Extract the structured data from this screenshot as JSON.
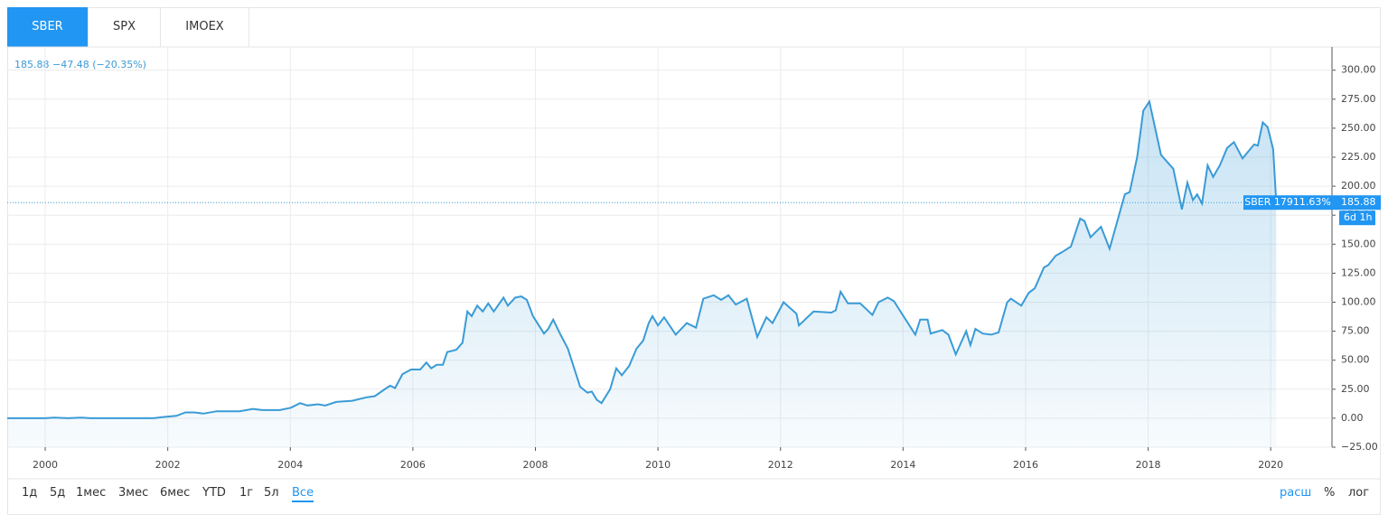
{
  "ui": {
    "tabs": [
      "SBER",
      "SPX",
      "IMOEX"
    ],
    "ranges": [
      "1д",
      "5д",
      "1мес",
      "3мес",
      "6мес",
      "YTD",
      "1г",
      "5л",
      "Все"
    ],
    "options": [
      "расш",
      "%",
      "лог"
    ]
  },
  "chart_data": {
    "type": "area",
    "header": "185.88 −47.48 (−20.35%)",
    "series_label": "SBER 17911.63%",
    "last_price": 185.88,
    "countdown": "6d 1h",
    "x": [
      1999.38,
      2000,
      2000.15,
      2000.37,
      2000.59,
      2000.74,
      2001.77,
      2001.92,
      2002.14,
      2002.29,
      2002.43,
      2002.58,
      2002.8,
      2003.17,
      2003.39,
      2003.54,
      2003.83,
      2004.01,
      2004.16,
      2004.28,
      2004.45,
      2004.57,
      2004.75,
      2005.01,
      2005.24,
      2005.38,
      2005.57,
      2005.63,
      2005.71,
      2005.83,
      2005.97,
      2006.12,
      2006.22,
      2006.3,
      2006.39,
      2006.49,
      2006.56,
      2006.71,
      2006.81,
      2006.89,
      2006.96,
      2007.05,
      2007.14,
      2007.23,
      2007.32,
      2007.48,
      2007.55,
      2007.67,
      2007.77,
      2007.86,
      2007.96,
      2008.14,
      2008.21,
      2008.29,
      2008.41,
      2008.53,
      2008.73,
      2008.85,
      2008.92,
      2009.0,
      2009.08,
      2009.22,
      2009.32,
      2009.41,
      2009.53,
      2009.65,
      2009.76,
      2009.85,
      2009.91,
      2010.0,
      2010.1,
      2010.29,
      2010.47,
      2010.62,
      2010.74,
      2010.91,
      2011.03,
      2011.15,
      2011.27,
      2011.45,
      2011.62,
      2011.77,
      2011.87,
      2012.05,
      2012.26,
      2012.3,
      2012.54,
      2012.83,
      2012.9,
      2012.98,
      2013.1,
      2013.3,
      2013.4,
      2013.5,
      2013.6,
      2013.75,
      2013.85,
      2013.97,
      2014.2,
      2014.28,
      2014.4,
      2014.45,
      2014.64,
      2014.74,
      2014.86,
      2015.03,
      2015.1,
      2015.18,
      2015.3,
      2015.44,
      2015.56,
      2015.7,
      2015.76,
      2015.93,
      2016.05,
      2016.15,
      2016.3,
      2016.37,
      2016.49,
      2016.59,
      2016.74,
      2016.89,
      2016.96,
      2017.06,
      2017.23,
      2017.37,
      2017.55,
      2017.62,
      2017.7,
      2017.82,
      2017.92,
      2018.02,
      2018.21,
      2018.41,
      2018.55,
      2018.64,
      2018.73,
      2018.8,
      2018.88,
      2018.97,
      2019.06,
      2019.17,
      2019.29,
      2019.4,
      2019.54,
      2019.73,
      2019.79,
      2019.87,
      2019.95,
      2020.04,
      2020.09
    ],
    "series": [
      {
        "name": "SBER",
        "color": "#3a9bd6",
        "values": [
          0,
          0,
          0.5,
          0,
          0.5,
          0,
          0,
          1,
          2,
          5,
          5,
          4,
          6,
          6,
          8,
          7,
          7,
          9,
          13,
          11,
          12,
          11,
          14,
          15,
          18,
          19,
          26,
          28,
          26,
          38,
          42,
          42,
          48,
          43,
          46,
          46,
          57,
          59,
          65,
          92,
          88,
          97,
          92,
          99,
          92,
          104,
          97,
          104,
          105,
          102,
          88,
          73,
          77,
          85,
          72,
          60,
          27,
          22,
          23,
          16,
          13,
          25,
          43,
          37,
          45,
          60,
          67,
          82,
          88,
          80,
          87,
          72,
          82,
          78,
          103,
          106,
          102,
          106,
          98,
          103,
          70,
          87,
          82,
          100,
          90,
          80,
          92,
          91,
          93,
          109,
          99,
          99,
          94,
          89,
          100,
          104,
          101,
          91,
          72,
          85,
          85,
          73,
          76,
          72,
          55,
          75,
          63,
          77,
          73,
          72,
          74,
          100,
          103,
          97,
          108,
          112,
          130,
          132,
          140,
          143,
          148,
          172,
          170,
          156,
          165,
          146,
          180,
          193,
          195,
          225,
          265,
          273,
          227,
          215,
          180,
          203,
          188,
          193,
          185,
          218,
          208,
          218,
          233,
          238,
          224,
          236,
          235,
          255,
          251,
          232,
          186
        ]
      }
    ],
    "xlim": [
      1999.38,
      2021
    ],
    "xticks": [
      2000,
      2002,
      2004,
      2006,
      2008,
      2010,
      2012,
      2014,
      2016,
      2018,
      2020
    ],
    "ylim": [
      -25,
      320
    ],
    "yticks": [
      {
        "value": -25,
        "label": "−25.00"
      },
      {
        "value": 0,
        "label": "0.00"
      },
      {
        "value": 25,
        "label": "25.00"
      },
      {
        "value": 50,
        "label": "50.00"
      },
      {
        "value": 75,
        "label": "75.00"
      },
      {
        "value": 100,
        "label": "100.00"
      },
      {
        "value": 125,
        "label": "125.00"
      },
      {
        "value": 150,
        "label": "150.00"
      },
      {
        "value": 175,
        "label": "175.00"
      },
      {
        "value": 200,
        "label": "200.00"
      },
      {
        "value": 225,
        "label": "225.00"
      },
      {
        "value": 250,
        "label": "250.00"
      },
      {
        "value": 275,
        "label": "275.00"
      },
      {
        "value": 300,
        "label": "300.00"
      }
    ],
    "grid": true
  }
}
